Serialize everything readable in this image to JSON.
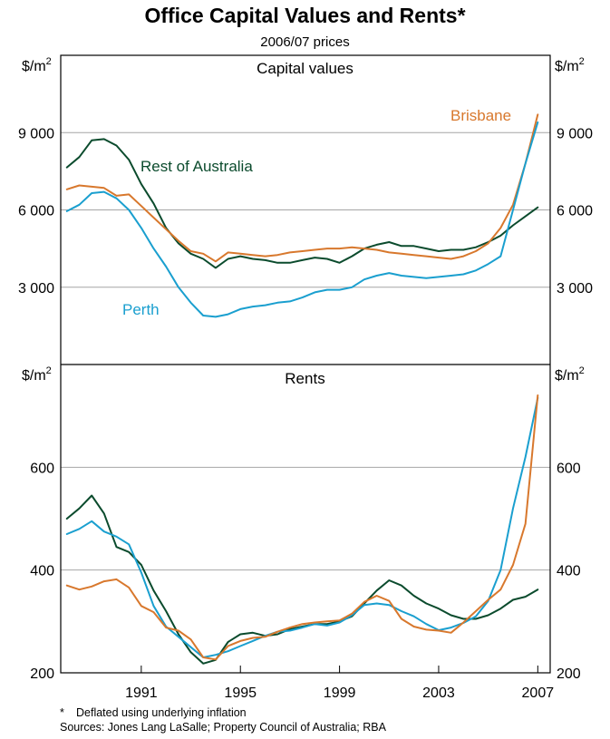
{
  "chart_data": {
    "title": "Office Capital Values and Rents*",
    "subtitle": "2006/07 prices",
    "colors": {
      "Rest of Australia": "#0b4b2d",
      "Perth": "#1a9fcf",
      "Brisbane": "#d8782d",
      "grid": "#a6a6a6",
      "axis": "#000000"
    },
    "x_ticks": [
      "1991",
      "1995",
      "1999",
      "2003",
      "2007"
    ],
    "xlim": [
      1987.75,
      2007.5
    ],
    "panels": [
      {
        "title": "Capital values",
        "type": "line",
        "unit": "$/m",
        "unit_sup": "2",
        "ylim": [
          0,
          12000
        ],
        "yticks": [
          3000,
          6000,
          9000
        ],
        "ytick_labels": [
          "3 000",
          "6 000",
          "9 000"
        ],
        "series": [
          {
            "name": "Rest of Australia",
            "label": "Rest of Australia",
            "x": [
              1988.0,
              1988.5,
              1989.0,
              1989.5,
              1990.0,
              1990.5,
              1991.0,
              1991.5,
              1992.0,
              1992.5,
              1993.0,
              1993.5,
              1994.0,
              1994.5,
              1995.0,
              1995.5,
              1996.0,
              1996.5,
              1997.0,
              1997.5,
              1998.0,
              1998.5,
              1999.0,
              1999.5,
              2000.0,
              2000.5,
              2001.0,
              2001.5,
              2002.0,
              2002.5,
              2003.0,
              2003.5,
              2004.0,
              2004.5,
              2005.0,
              2005.5,
              2006.0,
              2006.5,
              2007.0
            ],
            "y": [
              7650,
              8050,
              8700,
              8750,
              8500,
              7950,
              7000,
              6250,
              5300,
              4700,
              4300,
              4100,
              3750,
              4100,
              4200,
              4100,
              4050,
              3950,
              3950,
              4050,
              4150,
              4100,
              3950,
              4200,
              4500,
              4650,
              4750,
              4600,
              4600,
              4500,
              4400,
              4450,
              4450,
              4550,
              4750,
              5000,
              5400,
              5750,
              6100
            ]
          },
          {
            "name": "Brisbane",
            "label": "Brisbane",
            "x": [
              1988.0,
              1988.5,
              1989.0,
              1989.5,
              1990.0,
              1990.5,
              1991.0,
              1991.5,
              1992.0,
              1992.5,
              1993.0,
              1993.5,
              1994.0,
              1994.5,
              1995.0,
              1995.5,
              1996.0,
              1996.5,
              1997.0,
              1997.5,
              1998.0,
              1998.5,
              1999.0,
              1999.5,
              2000.0,
              2000.5,
              2001.0,
              2001.5,
              2002.0,
              2002.5,
              2003.0,
              2003.5,
              2004.0,
              2004.5,
              2005.0,
              2005.5,
              2006.0,
              2006.5,
              2007.0
            ],
            "y": [
              6800,
              6950,
              6900,
              6850,
              6550,
              6600,
              6150,
              5700,
              5250,
              4800,
              4400,
              4300,
              4000,
              4350,
              4300,
              4250,
              4200,
              4250,
              4350,
              4400,
              4450,
              4500,
              4500,
              4550,
              4500,
              4450,
              4350,
              4300,
              4250,
              4200,
              4150,
              4100,
              4200,
              4400,
              4700,
              5300,
              6200,
              7800,
              9700
            ]
          },
          {
            "name": "Perth",
            "label": "Perth",
            "x": [
              1988.0,
              1988.5,
              1989.0,
              1989.5,
              1990.0,
              1990.5,
              1991.0,
              1991.5,
              1992.0,
              1992.5,
              1993.0,
              1993.5,
              1994.0,
              1994.5,
              1995.0,
              1995.5,
              1996.0,
              1996.5,
              1997.0,
              1997.5,
              1998.0,
              1998.5,
              1999.0,
              1999.5,
              2000.0,
              2000.5,
              2001.0,
              2001.5,
              2002.0,
              2002.5,
              2003.0,
              2003.5,
              2004.0,
              2004.5,
              2005.0,
              2005.5,
              2006.0,
              2006.5,
              2007.0
            ],
            "y": [
              5950,
              6200,
              6650,
              6700,
              6450,
              6000,
              5300,
              4500,
              3800,
              3000,
              2400,
              1900,
              1850,
              1950,
              2150,
              2250,
              2300,
              2400,
              2450,
              2600,
              2800,
              2900,
              2900,
              3000,
              3300,
              3450,
              3550,
              3450,
              3400,
              3350,
              3400,
              3450,
              3500,
              3650,
              3900,
              4200,
              6000,
              7800,
              9400
            ]
          }
        ]
      },
      {
        "title": "Rents",
        "type": "line",
        "unit": "$/m",
        "unit_sup": "2",
        "ylim": [
          200,
          800
        ],
        "yticks": [
          200,
          400,
          600
        ],
        "ytick_labels": [
          "200",
          "400",
          "600"
        ],
        "series": [
          {
            "name": "Rest of Australia",
            "x": [
              1988.0,
              1988.5,
              1989.0,
              1989.5,
              1990.0,
              1990.5,
              1991.0,
              1991.5,
              1992.0,
              1992.5,
              1993.0,
              1993.5,
              1994.0,
              1994.5,
              1995.0,
              1995.5,
              1996.0,
              1996.5,
              1997.0,
              1997.5,
              1998.0,
              1998.5,
              1999.0,
              1999.5,
              2000.0,
              2000.5,
              2001.0,
              2001.5,
              2002.0,
              2002.5,
              2003.0,
              2003.5,
              2004.0,
              2004.5,
              2005.0,
              2005.5,
              2006.0,
              2006.5,
              2007.0
            ],
            "y": [
              500,
              520,
              545,
              510,
              445,
              435,
              410,
              360,
              320,
              275,
              240,
              218,
              225,
              260,
              275,
              278,
              272,
              275,
              285,
              290,
              295,
              295,
              300,
              310,
              335,
              360,
              380,
              370,
              350,
              335,
              325,
              312,
              305,
              305,
              312,
              325,
              342,
              348,
              362
            ]
          },
          {
            "name": "Perth",
            "x": [
              1988.0,
              1988.5,
              1989.0,
              1989.5,
              1990.0,
              1990.5,
              1991.0,
              1991.5,
              1992.0,
              1992.5,
              1993.0,
              1993.5,
              1994.0,
              1994.5,
              1995.0,
              1995.5,
              1996.0,
              1996.5,
              1997.0,
              1997.5,
              1998.0,
              1998.5,
              1999.0,
              1999.5,
              2000.0,
              2000.5,
              2001.0,
              2001.5,
              2002.0,
              2002.5,
              2003.0,
              2003.5,
              2004.0,
              2004.5,
              2005.0,
              2005.5,
              2006.0,
              2006.5,
              2007.0
            ],
            "y": [
              470,
              480,
              495,
              475,
              465,
              450,
              395,
              330,
              290,
              270,
              250,
              230,
              235,
              242,
              252,
              262,
              272,
              280,
              282,
              288,
              295,
              292,
              298,
              312,
              332,
              335,
              332,
              320,
              310,
              295,
              283,
              288,
              297,
              310,
              340,
              400,
              520,
              620,
              735
            ]
          },
          {
            "name": "Brisbane",
            "x": [
              1988.0,
              1988.5,
              1989.0,
              1989.5,
              1990.0,
              1990.5,
              1991.0,
              1991.5,
              1992.0,
              1992.5,
              1993.0,
              1993.5,
              1994.0,
              1994.5,
              1995.0,
              1995.5,
              1996.0,
              1996.5,
              1997.0,
              1997.5,
              1998.0,
              1998.5,
              1999.0,
              1999.5,
              2000.0,
              2000.5,
              2001.0,
              2001.5,
              2002.0,
              2002.5,
              2003.0,
              2003.5,
              2004.0,
              2004.5,
              2005.0,
              2005.5,
              2006.0,
              2006.5,
              2007.0
            ],
            "y": [
              370,
              362,
              368,
              378,
              382,
              366,
              330,
              318,
              288,
              282,
              265,
              230,
              226,
              252,
              262,
              268,
              270,
              280,
              288,
              295,
              298,
              300,
              302,
              315,
              338,
              350,
              340,
              305,
              290,
              284,
              282,
              278,
              298,
              320,
              342,
              362,
              410,
              490,
              740
            ]
          }
        ]
      }
    ]
  },
  "footnotes": {
    "star": "*",
    "deflated": "Deflated using underlying inflation",
    "sources": "Sources: Jones Lang LaSalle; Property Council of Australia; RBA"
  }
}
